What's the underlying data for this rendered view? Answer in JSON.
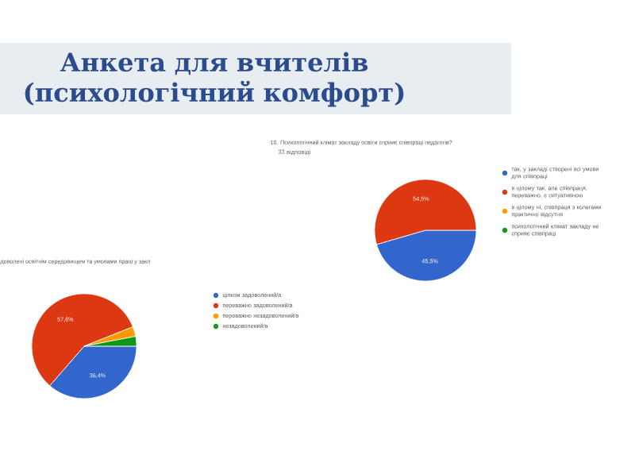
{
  "chart_data": [
    {
      "type": "other",
      "title": "Анкета для вчителів (психологічний комфорт)"
    },
    {
      "type": "pie",
      "title": "18. Психологічний клімат закладу освіти сприяє співпраці педагогів?",
      "subtitle": "33 відповіді",
      "categories": [
        "так, у закладі створені всі умови для співпраці",
        "в цілому так, але співпраця, переважно, є ситуативною",
        "в цілому ні, співпраця з колегами практично відсутня",
        "психологічний клімат закладу не сприяє співпраці"
      ],
      "values": [
        45.5,
        54.5,
        0,
        0
      ],
      "colors": [
        "#3366cc",
        "#dc3912",
        "#ff9900",
        "#109618"
      ],
      "value_labels": [
        "45,5%",
        "54,5%",
        null,
        null
      ],
      "legend": "right"
    },
    {
      "type": "pie",
      "title": "доволені освітнім середовищем та умовами праці у закл",
      "categories": [
        "цілком задоволений/а",
        "переважно задоволений/а",
        "переважно незадоволений/а",
        "незадоволений/а"
      ],
      "values": [
        36.4,
        57.6,
        3,
        3
      ],
      "colors": [
        "#3366cc",
        "#dc3912",
        "#ff9900",
        "#109618"
      ],
      "value_labels": [
        "36,4%",
        "57,6%",
        null,
        null
      ],
      "legend": "right"
    }
  ]
}
